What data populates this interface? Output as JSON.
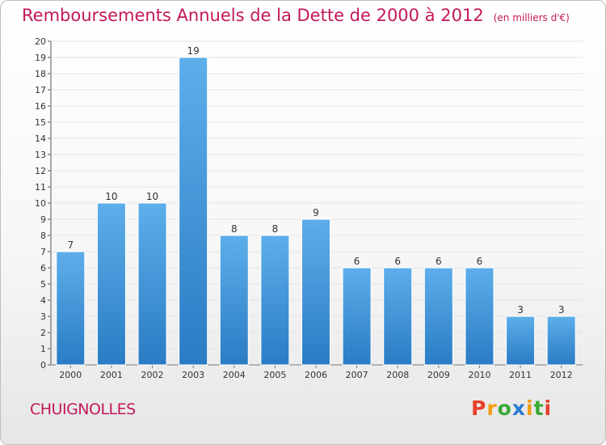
{
  "chart_data": {
    "type": "bar",
    "title": "Remboursements Annuels de la Dette de 2000 à 2012",
    "subtitle": "(en milliers d'€)",
    "categories": [
      "2000",
      "2001",
      "2002",
      "2003",
      "2004",
      "2005",
      "2006",
      "2007",
      "2008",
      "2009",
      "2010",
      "2011",
      "2012"
    ],
    "values": [
      7,
      10,
      10,
      19,
      8,
      8,
      9,
      6,
      6,
      6,
      6,
      3,
      3
    ],
    "ylim": [
      0,
      20
    ],
    "yticks": [
      0,
      1,
      2,
      3,
      4,
      5,
      6,
      7,
      8,
      9,
      10,
      11,
      12,
      13,
      14,
      15,
      16,
      17,
      18,
      19,
      20
    ],
    "xlabel": "",
    "ylabel": "",
    "bar_color": "#3d8fd6"
  },
  "footer": {
    "place": "CHUIGNOLLES",
    "logo_letters": [
      "P",
      "r",
      "o",
      "x",
      "i",
      "t",
      "i"
    ],
    "logo_colors": [
      "#e8402a",
      "#f39c12",
      "#3aa935",
      "#2b7bd1",
      "#f39c12",
      "#3aa935",
      "#e8402a"
    ]
  }
}
